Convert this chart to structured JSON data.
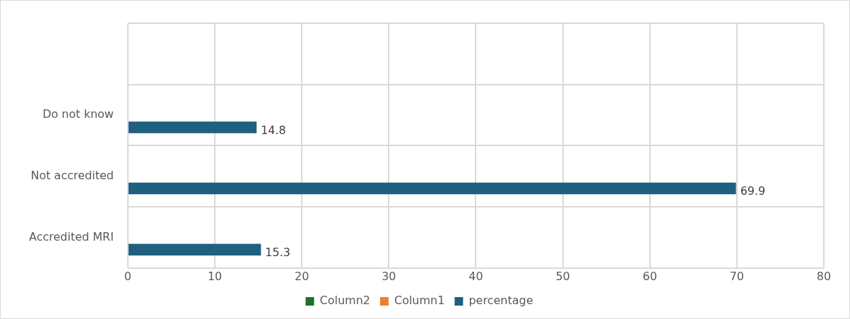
{
  "chart_data": {
    "type": "bar",
    "orientation": "horizontal",
    "categories": [
      null,
      "Do not know",
      "Not accredited",
      "Accredited MRI"
    ],
    "series": [
      {
        "name": "Column2",
        "color": "#1e6e2e",
        "values": [
          null,
          null,
          null,
          null
        ]
      },
      {
        "name": "Column1",
        "color": "#ed7d31",
        "values": [
          null,
          null,
          null,
          null
        ]
      },
      {
        "name": "percentage",
        "color": "#1f5f7f",
        "values": [
          null,
          14.8,
          69.9,
          15.3
        ]
      }
    ],
    "xlim": [
      0,
      80
    ],
    "xticks": [
      0,
      10,
      20,
      30,
      40,
      50,
      60,
      70,
      80
    ],
    "grid": true,
    "legend": "bottom",
    "data_labels": true
  }
}
